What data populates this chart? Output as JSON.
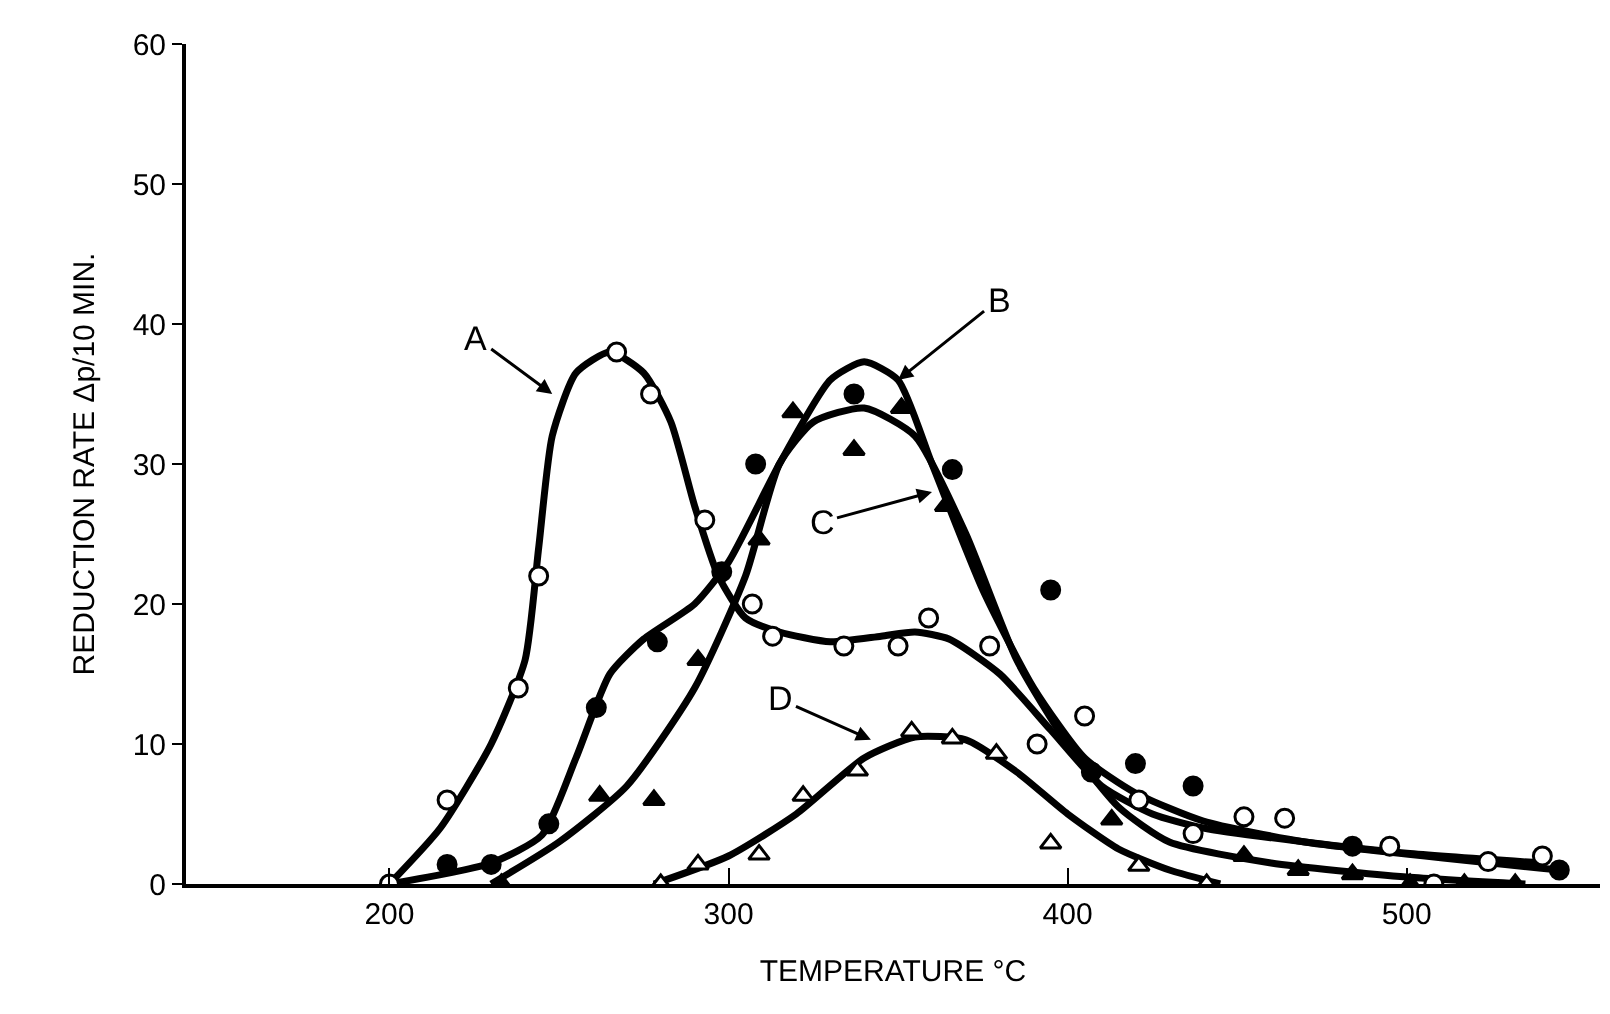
{
  "chart_data": {
    "type": "line",
    "xlabel": "TEMPERATURE °C",
    "ylabel": "REDUCTION RATE Δp/10 MIN.",
    "xlim": [
      140,
      557
    ],
    "xticks": [
      200,
      300,
      400,
      500
    ],
    "ylim": [
      0,
      60
    ],
    "yticks": [
      0,
      10,
      20,
      30,
      40,
      50,
      60
    ],
    "series": [
      {
        "color": "#000000",
        "x": [
          200,
          215,
          230,
          240,
          244,
          248,
          255,
          265,
          275,
          283,
          290,
          297,
          305,
          315,
          330,
          345,
          355,
          365,
          380,
          395,
          410,
          425,
          440,
          470,
          500,
          540
        ],
        "values": [
          0,
          4,
          10,
          16,
          24,
          32,
          36.5,
          38,
          36.5,
          33,
          27,
          22,
          19,
          18,
          17.3,
          17.7,
          18,
          17.5,
          15,
          11,
          7,
          5,
          4,
          3,
          2.2,
          1.5
        ]
      },
      {
        "color": "#000000",
        "x": [
          200,
          230,
          245,
          255,
          265,
          275,
          290,
          300,
          315,
          330,
          340,
          350,
          360,
          375,
          390,
          405,
          420,
          440,
          470,
          545
        ],
        "values": [
          0,
          1.5,
          3.5,
          9,
          15,
          17.5,
          20,
          23,
          30,
          36,
          37.3,
          36,
          30,
          21,
          14,
          9,
          6.5,
          4.5,
          3,
          1
        ]
      },
      {
        "color": "#000000",
        "x": [
          230,
          250,
          270,
          290,
          305,
          315,
          325,
          340,
          355,
          370,
          385,
          400,
          415,
          430,
          460,
          500,
          535
        ],
        "values": [
          0,
          3,
          7,
          14,
          22,
          30,
          33,
          34,
          32,
          25,
          16,
          10,
          5.5,
          3,
          1.5,
          0.5,
          0
        ]
      },
      {
        "color": "#000000",
        "x": [
          278,
          300,
          320,
          340,
          355,
          370,
          385,
          400,
          415,
          430,
          445
        ],
        "values": [
          0,
          2,
          5,
          9,
          10.5,
          10.3,
          8,
          5,
          2.5,
          1,
          0
        ]
      },
      {
        "type": "scatter",
        "marker": "circle",
        "color": "#ffffff",
        "x": [
          200,
          217,
          238,
          244,
          267,
          277,
          293,
          307,
          313,
          334,
          350,
          359,
          377,
          391,
          405,
          421,
          437,
          452,
          464,
          495,
          508,
          524,
          540
        ],
        "values": [
          0,
          6,
          14,
          22,
          38,
          35,
          26,
          20,
          17.7,
          17,
          17,
          19,
          17,
          10,
          12,
          6,
          3.6,
          4.8,
          4.7,
          2.7,
          0,
          1.6,
          2
        ]
      },
      {
        "type": "scatter",
        "marker": "circle",
        "color": "#000000",
        "x": [
          217,
          230,
          247,
          261,
          279,
          298,
          308,
          337,
          366,
          395,
          407,
          420,
          437,
          484,
          545
        ],
        "values": [
          1.4,
          1.4,
          4.3,
          12.6,
          17.3,
          22.3,
          30,
          35,
          29.6,
          21,
          8,
          8.6,
          7,
          2.7,
          1
        ]
      },
      {
        "type": "scatter",
        "marker": "triangle",
        "color": "#000000",
        "x": [
          233,
          262,
          278,
          291,
          309,
          319,
          337,
          351,
          364,
          413,
          452,
          468,
          484,
          501,
          517,
          532
        ],
        "values": [
          0,
          6.3,
          6,
          16,
          24.6,
          33.7,
          31,
          34,
          27,
          4.6,
          2,
          1,
          0.7,
          0,
          0,
          0
        ]
      },
      {
        "type": "scatter",
        "marker": "triangle",
        "color": "#ffffff",
        "x": [
          280,
          291,
          309,
          322,
          338,
          354,
          366,
          379,
          395,
          421,
          441
        ],
        "values": [
          0,
          1.4,
          2.1,
          6.3,
          8.1,
          10.9,
          10.4,
          9.3,
          2.9,
          1.3,
          0
        ]
      }
    ],
    "annotations": [
      {
        "text": "A",
        "x": 248,
        "y": 35
      },
      {
        "text": "B",
        "x": 350,
        "y": 36
      },
      {
        "text": "C",
        "x": 360,
        "y": 28
      },
      {
        "text": "D",
        "x": 342,
        "y": 10.3
      }
    ]
  }
}
